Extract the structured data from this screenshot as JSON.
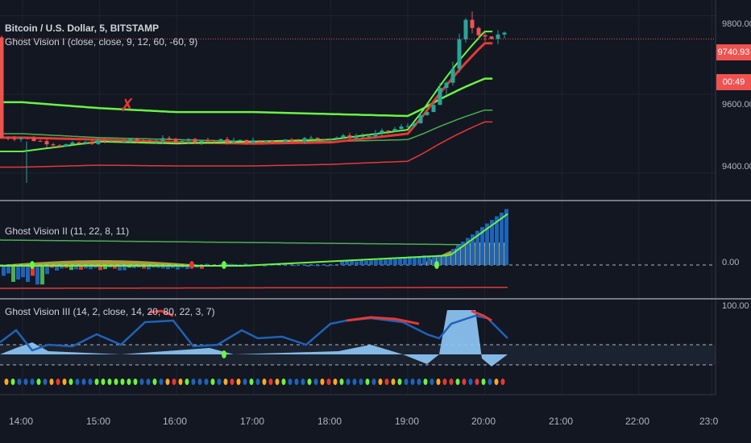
{
  "header": {
    "title": "Bitcoin / U.S. Dollar, 5, BITSTAMP",
    "indicator1": "Ghost Vision I (close, close, 9, 12, 60, -60, 9)",
    "indicator2": "Ghost Vision II (11, 22, 8, 11)",
    "indicator3": "Ghost Vision III (14, 2, close, 14, 20, 80, 22, 3, 7)"
  },
  "price_axis": {
    "ticks": [
      "9800.00",
      "9600.00",
      "9400.00"
    ],
    "last_price": "9740.93",
    "countdown": "00:49",
    "pane2_tick": "0.00",
    "pane3_tick": "100.00"
  },
  "time_axis": {
    "ticks": [
      "14:00",
      "15:00",
      "16:00",
      "17:00",
      "18:00",
      "19:00",
      "20:00",
      "21:00",
      "22:00",
      "23:0"
    ]
  },
  "colors": {
    "background": "#131722",
    "up": "#26a69a",
    "down": "#ef5350",
    "bright_green": "#69f542",
    "green": "#4caf50",
    "red": "#e53935",
    "blue": "#1e63b8",
    "light_blue": "#90caf9",
    "yellow": "#e8d44d",
    "orange": "#ffa726"
  },
  "chart_data": {
    "type": "line",
    "x": [
      "14:00",
      "15:00",
      "16:00",
      "17:00",
      "18:00",
      "19:00",
      "20:00"
    ],
    "series": [
      {
        "values": [
          9580,
          9565,
          9555,
          9555,
          9550,
          9545,
          9640
        ]
      },
      {
        "values": [
          9500,
          9490,
          9485,
          9480,
          9480,
          9485,
          9560
        ]
      },
      {
        "values": [
          9490,
          9485,
          9478,
          9475,
          9478,
          9500,
          9730
        ]
      },
      {
        "values": [
          9415,
          9420,
          9418,
          9418,
          9422,
          9430,
          9530
        ]
      },
      {
        "values": [
          9455,
          9480,
          9475,
          9480,
          9485,
          9510,
          9760
        ]
      }
    ],
    "ylim": [
      9330,
      9840
    ],
    "yticks": [
      9400,
      9600,
      9800
    ],
    "last_price": 9740.93,
    "grid": true
  }
}
